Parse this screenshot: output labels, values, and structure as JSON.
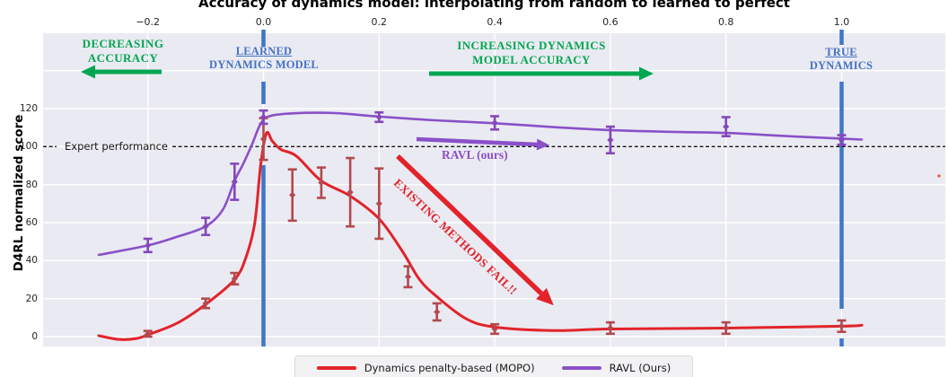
{
  "title": "Accuracy of dynamics model: interpolating from random to learned to perfect",
  "annotations": {
    "decreasing": {
      "line1": "DECREASING",
      "line2": "ACCURACY"
    },
    "learned": {
      "line1": "LEARNED",
      "line2": "DYNAMICS MODEL"
    },
    "increasing": {
      "line1": "INCREASING DYNAMICS",
      "line2": "MODEL ACCURACY"
    },
    "true_dynamics": {
      "line1": "TRUE",
      "line2": "DYNAMICS"
    },
    "ravl_arrow_label": "RAVL (ours)",
    "fail_label": "EXISTING METHODS FAIL!!"
  },
  "legend": {
    "items": [
      {
        "label": "Dynamics penalty-based (MOPO)",
        "color_key": "mopo_line"
      },
      {
        "label": "RAVL (Ours)",
        "color_key": "ravl_line"
      }
    ]
  },
  "colors": {
    "mopo_line": "#e2232a",
    "mopo_marker": "#b24a4e",
    "ravl_line": "#8a50c8",
    "ravl_marker": "#8348bb",
    "vline_blue": "#3e76c8",
    "blue_text": "#4472c4",
    "green": "#00a651",
    "expert_line": "#141414",
    "plot_bg": "#eaeaf2",
    "grid": "#ffffff",
    "stray_dot": "#e2572b"
  },
  "chart_data": {
    "type": "line",
    "title": "Accuracy of dynamics model: interpolating from random to learned to perfect",
    "xlabel": "",
    "ylabel": "D4RL normalized score",
    "xlim": [
      -0.38,
      1.18
    ],
    "ylim": [
      -5,
      160
    ],
    "grid": true,
    "legend_position": "bottom-center",
    "x_ticks": [
      {
        "label": "−0.2",
        "value": -0.2
      },
      {
        "label": "0.0",
        "value": 0.0
      },
      {
        "label": "0.2",
        "value": 0.2
      },
      {
        "label": "0.4",
        "value": 0.4
      },
      {
        "label": "0.6",
        "value": 0.6
      },
      {
        "label": "0.8",
        "value": 0.8
      },
      {
        "label": "1.0",
        "value": 1.0
      }
    ],
    "y_ticks": [
      {
        "label": "0",
        "value": 0
      },
      {
        "label": "20",
        "value": 20
      },
      {
        "label": "40",
        "value": 40
      },
      {
        "label": "60",
        "value": 60
      },
      {
        "label": "80",
        "value": 80
      },
      {
        "label": "100",
        "value": 100
      },
      {
        "label": "120",
        "value": 120
      }
    ],
    "grid_y": [
      0,
      20,
      40,
      60,
      80,
      100,
      120,
      140
    ],
    "expert_line": {
      "y": 100,
      "label": "Expert performance",
      "style": "dashed"
    },
    "vlines": [
      {
        "x": 0.0,
        "label": "LEARNED DYNAMICS MODEL"
      },
      {
        "x": 1.0,
        "label": "TRUE DYNAMICS"
      }
    ],
    "series": [
      {
        "name": "Dynamics penalty-based (MOPO)",
        "color_key": "mopo_line",
        "marker_color_key": "mopo_marker",
        "line_width": 3,
        "points": [
          {
            "x": -0.2,
            "y": 1.5,
            "e": 1.5
          },
          {
            "x": -0.1,
            "y": 17.5,
            "e": 2.5
          },
          {
            "x": -0.05,
            "y": 30.5,
            "e": 3
          },
          {
            "x": 0.0,
            "y": 104,
            "e": 11
          },
          {
            "x": 0.05,
            "y": 74.5,
            "e": 13.5
          },
          {
            "x": 0.1,
            "y": 81,
            "e": 8
          },
          {
            "x": 0.15,
            "y": 76,
            "e": 18
          },
          {
            "x": 0.2,
            "y": 70,
            "e": 18.5
          },
          {
            "x": 0.25,
            "y": 31.5,
            "e": 5.5
          },
          {
            "x": 0.3,
            "y": 13,
            "e": 4.5
          },
          {
            "x": 0.4,
            "y": 4,
            "e": 2.5
          },
          {
            "x": 0.6,
            "y": 4.5,
            "e": 3
          },
          {
            "x": 0.8,
            "y": 4.5,
            "e": 3
          },
          {
            "x": 1.0,
            "y": 5.5,
            "e": 3
          }
        ],
        "trend": [
          [
            -0.285,
            0.5
          ],
          [
            -0.25,
            -1.5
          ],
          [
            -0.22,
            -1
          ],
          [
            -0.2,
            1
          ],
          [
            -0.15,
            7
          ],
          [
            -0.1,
            17
          ],
          [
            -0.05,
            30
          ],
          [
            -0.03,
            42
          ],
          [
            -0.015,
            60
          ],
          [
            -0.005,
            90
          ],
          [
            0.005,
            107
          ],
          [
            0.015,
            103
          ],
          [
            0.03,
            98.5
          ],
          [
            0.057,
            95
          ],
          [
            0.1,
            82
          ],
          [
            0.15,
            74
          ],
          [
            0.2,
            62
          ],
          [
            0.24,
            45
          ],
          [
            0.27,
            30
          ],
          [
            0.3,
            21
          ],
          [
            0.35,
            9.5
          ],
          [
            0.4,
            5
          ],
          [
            0.5,
            3.2
          ],
          [
            0.6,
            4
          ],
          [
            0.8,
            4.5
          ],
          [
            1.0,
            5.5
          ],
          [
            1.035,
            6
          ]
        ]
      },
      {
        "name": "RAVL (Ours)",
        "color_key": "ravl_line",
        "marker_color_key": "ravl_marker",
        "line_width": 2.6,
        "points": [
          {
            "x": -0.2,
            "y": 48,
            "e": 3.5
          },
          {
            "x": -0.1,
            "y": 58,
            "e": 4.5
          },
          {
            "x": -0.05,
            "y": 81.5,
            "e": 9.5
          },
          {
            "x": 0.0,
            "y": 115.5,
            "e": 3.5
          },
          {
            "x": 0.2,
            "y": 115.5,
            "e": 2.5
          },
          {
            "x": 0.4,
            "y": 112.5,
            "e": 3.5
          },
          {
            "x": 0.6,
            "y": 103.5,
            "e": 7
          },
          {
            "x": 0.8,
            "y": 110.5,
            "e": 5
          },
          {
            "x": 1.0,
            "y": 103.5,
            "e": 2.5
          }
        ],
        "trend": [
          [
            -0.285,
            43
          ],
          [
            -0.2,
            48
          ],
          [
            -0.15,
            52.5
          ],
          [
            -0.1,
            58
          ],
          [
            -0.07,
            67
          ],
          [
            -0.05,
            82
          ],
          [
            -0.035,
            91
          ],
          [
            -0.02,
            101
          ],
          [
            -0.005,
            112
          ],
          [
            0.01,
            116
          ],
          [
            0.05,
            117.5
          ],
          [
            0.12,
            117.7
          ],
          [
            0.2,
            115.8
          ],
          [
            0.3,
            113.8
          ],
          [
            0.4,
            112.3
          ],
          [
            0.5,
            110.3
          ],
          [
            0.6,
            108.7
          ],
          [
            0.7,
            107.8
          ],
          [
            0.8,
            107.2
          ],
          [
            0.9,
            105.6
          ],
          [
            1.0,
            104.2
          ],
          [
            1.035,
            103.7
          ]
        ]
      }
    ]
  }
}
